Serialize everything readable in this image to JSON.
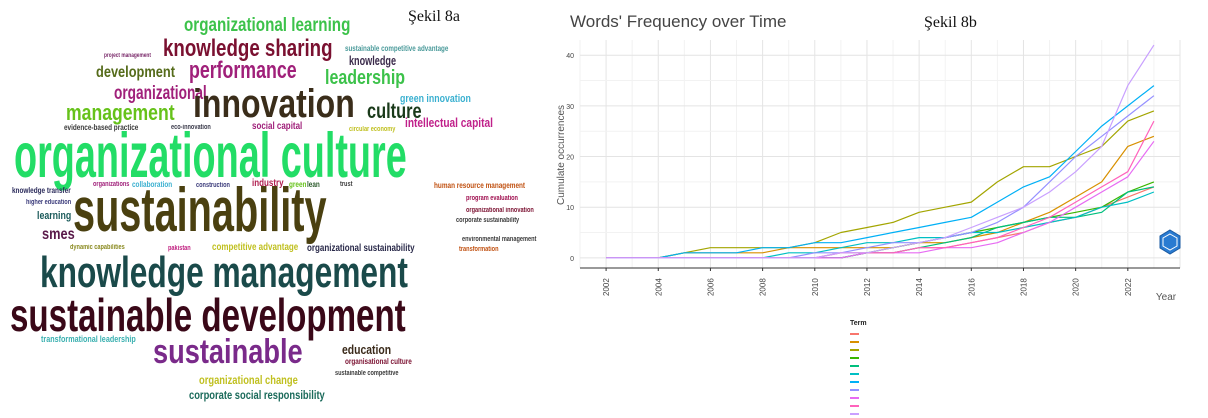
{
  "figure_a_label": "Şekil 8a",
  "figure_b_label": "Şekil 8b",
  "wordcloud": {
    "words": [
      {
        "text": "organizational learning",
        "color": "#3cc24a"
      },
      {
        "text": "knowledge sharing",
        "color": "#7a1030"
      },
      {
        "text": "sustainable competitive advantage",
        "color": "#4a9a9a"
      },
      {
        "text": "project management",
        "color": "#7a2a6a"
      },
      {
        "text": "performance",
        "color": "#a0207a"
      },
      {
        "text": "knowledge",
        "color": "#3a2a4a"
      },
      {
        "text": "development",
        "color": "#556b1a"
      },
      {
        "text": "leadership",
        "color": "#3cc24a"
      },
      {
        "text": "organizational",
        "color": "#a0207a"
      },
      {
        "text": "innovation",
        "color": "#3a2d1a"
      },
      {
        "text": "green innovation",
        "color": "#3ab0d0"
      },
      {
        "text": "management",
        "color": "#66c21a"
      },
      {
        "text": "culture",
        "color": "#1a3a1a"
      },
      {
        "text": "intellectual capital",
        "color": "#c0208a"
      },
      {
        "text": "evidence-based practice",
        "color": "#3a3a3a"
      },
      {
        "text": "eco-innovation",
        "color": "#3a3a4a"
      },
      {
        "text": "social capital",
        "color": "#a0207a"
      },
      {
        "text": "circular economy",
        "color": "#c0c020"
      },
      {
        "text": "organizational culture",
        "color": "#22dd66"
      },
      {
        "text": "knowledge transfer",
        "color": "#2a2a5a"
      },
      {
        "text": "organizations",
        "color": "#a0207a"
      },
      {
        "text": "collaboration",
        "color": "#3ab0d0"
      },
      {
        "text": "construction",
        "color": "#3a3a7a"
      },
      {
        "text": "industry",
        "color": "#b02050"
      },
      {
        "text": "green",
        "color": "#66c21a"
      },
      {
        "text": "lean",
        "color": "#2a5a2a"
      },
      {
        "text": "trust",
        "color": "#3a3a3a"
      },
      {
        "text": "human resource management",
        "color": "#c05010"
      },
      {
        "text": "higher education",
        "color": "#3a3a7a"
      },
      {
        "text": "sustainability",
        "color": "#4a4010"
      },
      {
        "text": "program evaluation",
        "color": "#a01050"
      },
      {
        "text": "organizational innovation",
        "color": "#7a1030"
      },
      {
        "text": "learning",
        "color": "#1a5a5a"
      },
      {
        "text": "corporate sustainability",
        "color": "#3a3a3a"
      },
      {
        "text": "smes",
        "color": "#5a1a4a"
      },
      {
        "text": "dynamic capabilities",
        "color": "#8a8a20"
      },
      {
        "text": "pakistan",
        "color": "#c02080"
      },
      {
        "text": "competitive advantage",
        "color": "#c0c020"
      },
      {
        "text": "organizational sustainability",
        "color": "#2a2a4a"
      },
      {
        "text": "environmental management",
        "color": "#3a3a3a"
      },
      {
        "text": "transformation",
        "color": "#c05010"
      },
      {
        "text": "knowledge management",
        "color": "#1a4a4a"
      },
      {
        "text": "sustainable development",
        "color": "#3a0818"
      },
      {
        "text": "transformational leadership",
        "color": "#3ab0b0"
      },
      {
        "text": "sustainable",
        "color": "#7a2a8a"
      },
      {
        "text": "education",
        "color": "#3a2a1a"
      },
      {
        "text": "organisational culture",
        "color": "#7a1030"
      },
      {
        "text": "sustainable competitive",
        "color": "#3a3a3a"
      },
      {
        "text": "organizational change",
        "color": "#c0c020"
      },
      {
        "text": "corporate social responsibility",
        "color": "#1a6a5a"
      }
    ]
  },
  "chart_data": {
    "type": "line",
    "title": "Words' Frequency over Time",
    "xlabel": "Year",
    "ylabel": "Cumulate occurrences",
    "xlim": [
      2001,
      2024
    ],
    "ylim": [
      -2,
      43
    ],
    "x_ticks": [
      "2002",
      "2004",
      "2006",
      "2008",
      "2010",
      "2012",
      "2014",
      "2016",
      "2018",
      "2020",
      "2022"
    ],
    "y_ticks": [
      "0",
      "10",
      "20",
      "30",
      "40"
    ],
    "grid": true,
    "legend_title": "Term",
    "legend_position": "bottom",
    "x": [
      2002,
      2003,
      2004,
      2005,
      2006,
      2007,
      2008,
      2009,
      2010,
      2011,
      2012,
      2013,
      2014,
      2015,
      2016,
      2017,
      2018,
      2019,
      2020,
      2021,
      2022,
      2023
    ],
    "series": [
      {
        "color": "#F8766D",
        "values": [
          0,
          0,
          0,
          0,
          0,
          0,
          0,
          0,
          0,
          1,
          1,
          1,
          2,
          2,
          3,
          4,
          5,
          7,
          8,
          10,
          12,
          14
        ]
      },
      {
        "color": "#D89000",
        "values": [
          0,
          0,
          0,
          1,
          1,
          1,
          1,
          2,
          2,
          2,
          2,
          2,
          3,
          3,
          4,
          5,
          7,
          9,
          12,
          15,
          22,
          24
        ]
      },
      {
        "color": "#A3A500",
        "values": [
          0,
          0,
          0,
          1,
          2,
          2,
          2,
          2,
          3,
          5,
          6,
          7,
          9,
          10,
          11,
          15,
          18,
          18,
          20,
          22,
          27,
          29
        ]
      },
      {
        "color": "#39B600",
        "values": [
          0,
          0,
          0,
          0,
          0,
          0,
          0,
          0,
          0,
          0,
          1,
          2,
          3,
          4,
          5,
          6,
          7,
          8,
          9,
          10,
          13,
          15
        ]
      },
      {
        "color": "#00BF7D",
        "values": [
          0,
          0,
          0,
          0,
          0,
          0,
          0,
          0,
          0,
          0,
          1,
          1,
          2,
          3,
          4,
          6,
          7,
          8,
          8,
          9,
          13,
          14
        ]
      },
      {
        "color": "#00BFC4",
        "values": [
          0,
          0,
          0,
          0,
          0,
          0,
          0,
          1,
          1,
          2,
          3,
          3,
          4,
          4,
          5,
          5,
          6,
          7,
          8,
          10,
          11,
          13
        ]
      },
      {
        "color": "#00B0F6",
        "values": [
          0,
          0,
          0,
          1,
          1,
          1,
          2,
          2,
          3,
          3,
          4,
          5,
          6,
          7,
          8,
          11,
          14,
          16,
          21,
          26,
          30,
          34
        ]
      },
      {
        "color": "#9590FF",
        "values": [
          0,
          0,
          0,
          0,
          0,
          0,
          0,
          0,
          1,
          1,
          2,
          3,
          3,
          4,
          5,
          7,
          10,
          15,
          20,
          24,
          28,
          32
        ]
      },
      {
        "color": "#E76BF3",
        "values": [
          0,
          0,
          0,
          0,
          0,
          0,
          0,
          0,
          0,
          0,
          1,
          1,
          1,
          2,
          2,
          3,
          5,
          7,
          10,
          13,
          16,
          23
        ]
      },
      {
        "color": "#FF62BC",
        "values": [
          0,
          0,
          0,
          0,
          0,
          0,
          0,
          0,
          0,
          1,
          1,
          1,
          2,
          2,
          3,
          4,
          6,
          8,
          11,
          14,
          17,
          27
        ]
      },
      {
        "color": "#C9A0FF",
        "values": [
          0,
          0,
          0,
          0,
          0,
          0,
          0,
          0,
          0,
          1,
          1,
          2,
          3,
          4,
          6,
          8,
          10,
          13,
          17,
          22,
          34,
          42
        ]
      }
    ]
  }
}
